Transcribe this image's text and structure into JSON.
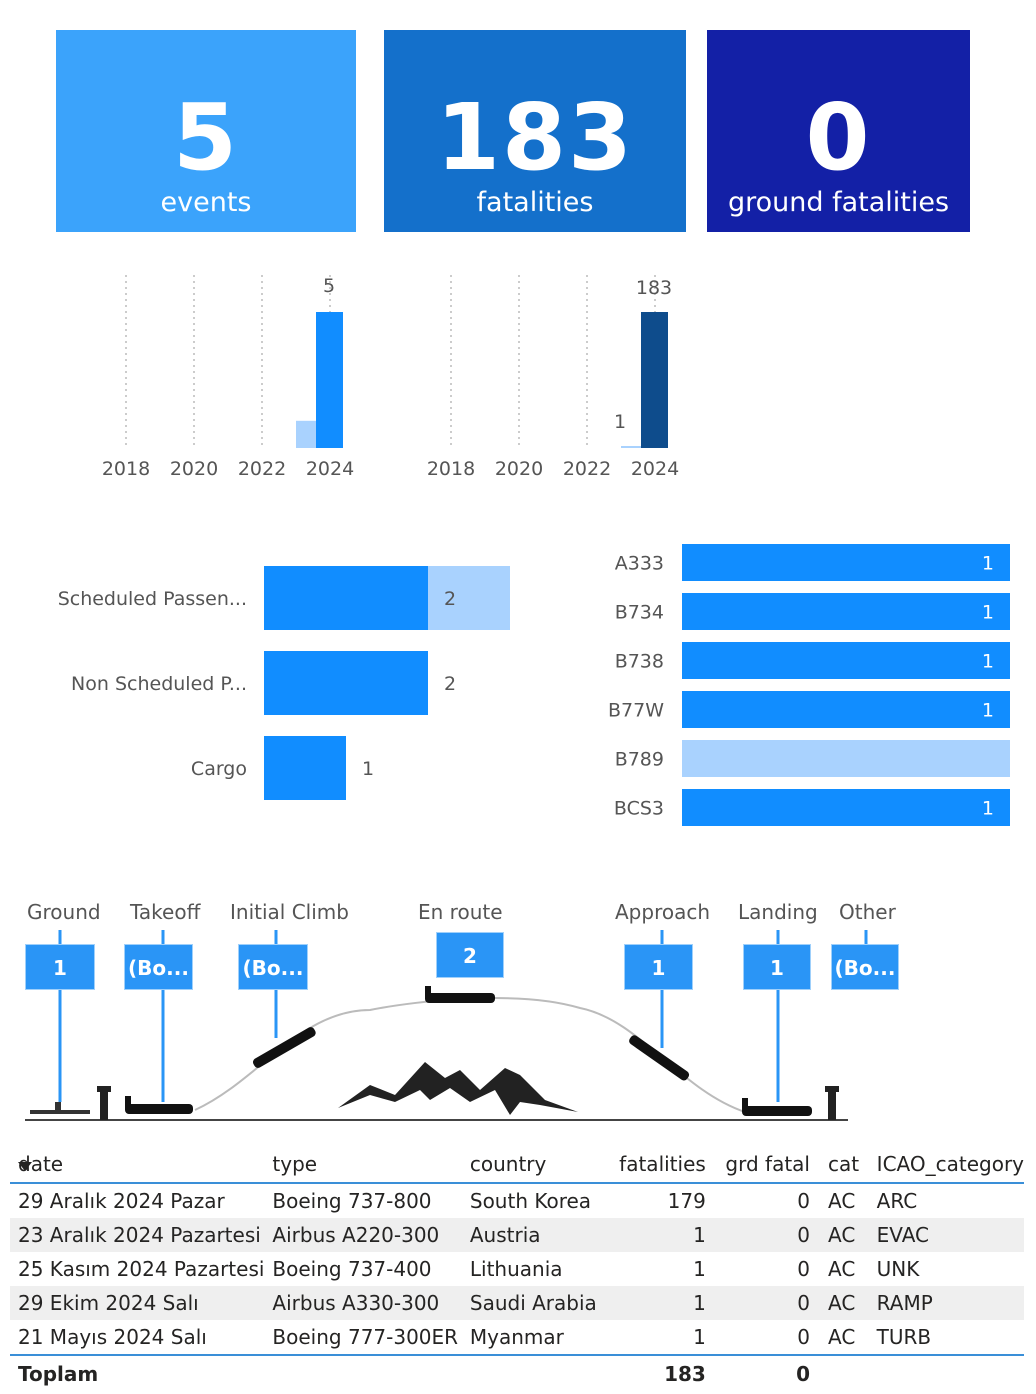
{
  "kpis": {
    "events": {
      "value": "5",
      "label": "events"
    },
    "fatalities": {
      "value": "183",
      "label": "fatalities"
    },
    "ground": {
      "value": "0",
      "label": "ground fatalities"
    }
  },
  "colors": {
    "light_blue": "#3BA3FB",
    "mid_blue": "#1470CB",
    "dark_blue": "#1320A6",
    "bar_blue": "#118DFF",
    "bar_light": "#A9D2FE",
    "bar_dark": "#0E4C8C"
  },
  "chart_data": [
    {
      "type": "bar",
      "categories": [
        "2018",
        "2020",
        "2022",
        "2024"
      ],
      "series": [
        {
          "values": [
            0,
            0,
            0,
            1
          ]
        },
        {
          "values": [
            0,
            0,
            0,
            5
          ]
        }
      ],
      "data_labels": [
        "5"
      ]
    },
    {
      "type": "bar",
      "categories": [
        "2018",
        "2020",
        "2022",
        "2024"
      ],
      "series": [
        {
          "values": [
            0,
            0,
            0,
            1
          ]
        },
        {
          "values": [
            0,
            0,
            0,
            183
          ]
        }
      ],
      "data_labels": [
        "1",
        "183"
      ]
    },
    {
      "type": "bar",
      "orientation": "horizontal",
      "categories": [
        "Scheduled Passen...",
        "Non Scheduled P...",
        "Cargo"
      ],
      "series": [
        {
          "values": [
            2,
            2,
            1
          ]
        },
        {
          "values": [
            1,
            0,
            0
          ]
        }
      ],
      "data_labels": [
        "2",
        "2",
        "1"
      ]
    },
    {
      "type": "bar",
      "orientation": "horizontal",
      "categories": [
        "A333",
        "B734",
        "B738",
        "B77W",
        "B789",
        "BCS3"
      ],
      "values": [
        1,
        1,
        1,
        1,
        1,
        1
      ],
      "data_labels": [
        "1",
        "1",
        "1",
        "1",
        "",
        "1"
      ]
    }
  ],
  "phases": [
    {
      "label": "Ground",
      "value": "1"
    },
    {
      "label": "Takeoff",
      "value": "(Bo..."
    },
    {
      "label": "Initial Climb",
      "value": "(Bo..."
    },
    {
      "label": "En route",
      "value": "2"
    },
    {
      "label": "Approach",
      "value": "1"
    },
    {
      "label": "Landing",
      "value": "1"
    },
    {
      "label": "Other",
      "value": "(Bo..."
    }
  ],
  "table": {
    "columns": [
      "date",
      "type",
      "country",
      "fatalities",
      "grd fatal",
      "cat",
      "ICAO_category"
    ],
    "rows": [
      [
        "29 Aralık 2024 Pazar",
        "Boeing 737-800",
        "South Korea",
        "179",
        "0",
        "AC",
        "ARC"
      ],
      [
        "23 Aralık 2024 Pazartesi",
        "Airbus A220-300",
        "Austria",
        "1",
        "0",
        "AC",
        "EVAC"
      ],
      [
        "25 Kasım 2024 Pazartesi",
        "Boeing 737-400",
        "Lithuania",
        "1",
        "0",
        "AC",
        "UNK"
      ],
      [
        "29 Ekim 2024 Salı",
        "Airbus A330-300",
        "Saudi Arabia",
        "1",
        "0",
        "AC",
        "RAMP"
      ],
      [
        "21 Mayıs 2024 Salı",
        "Boeing 777-300ER",
        "Myanmar",
        "1",
        "0",
        "AC",
        "TURB"
      ]
    ],
    "total": {
      "label": "Toplam",
      "fatalities": "183",
      "grd_fatal": "0"
    }
  }
}
